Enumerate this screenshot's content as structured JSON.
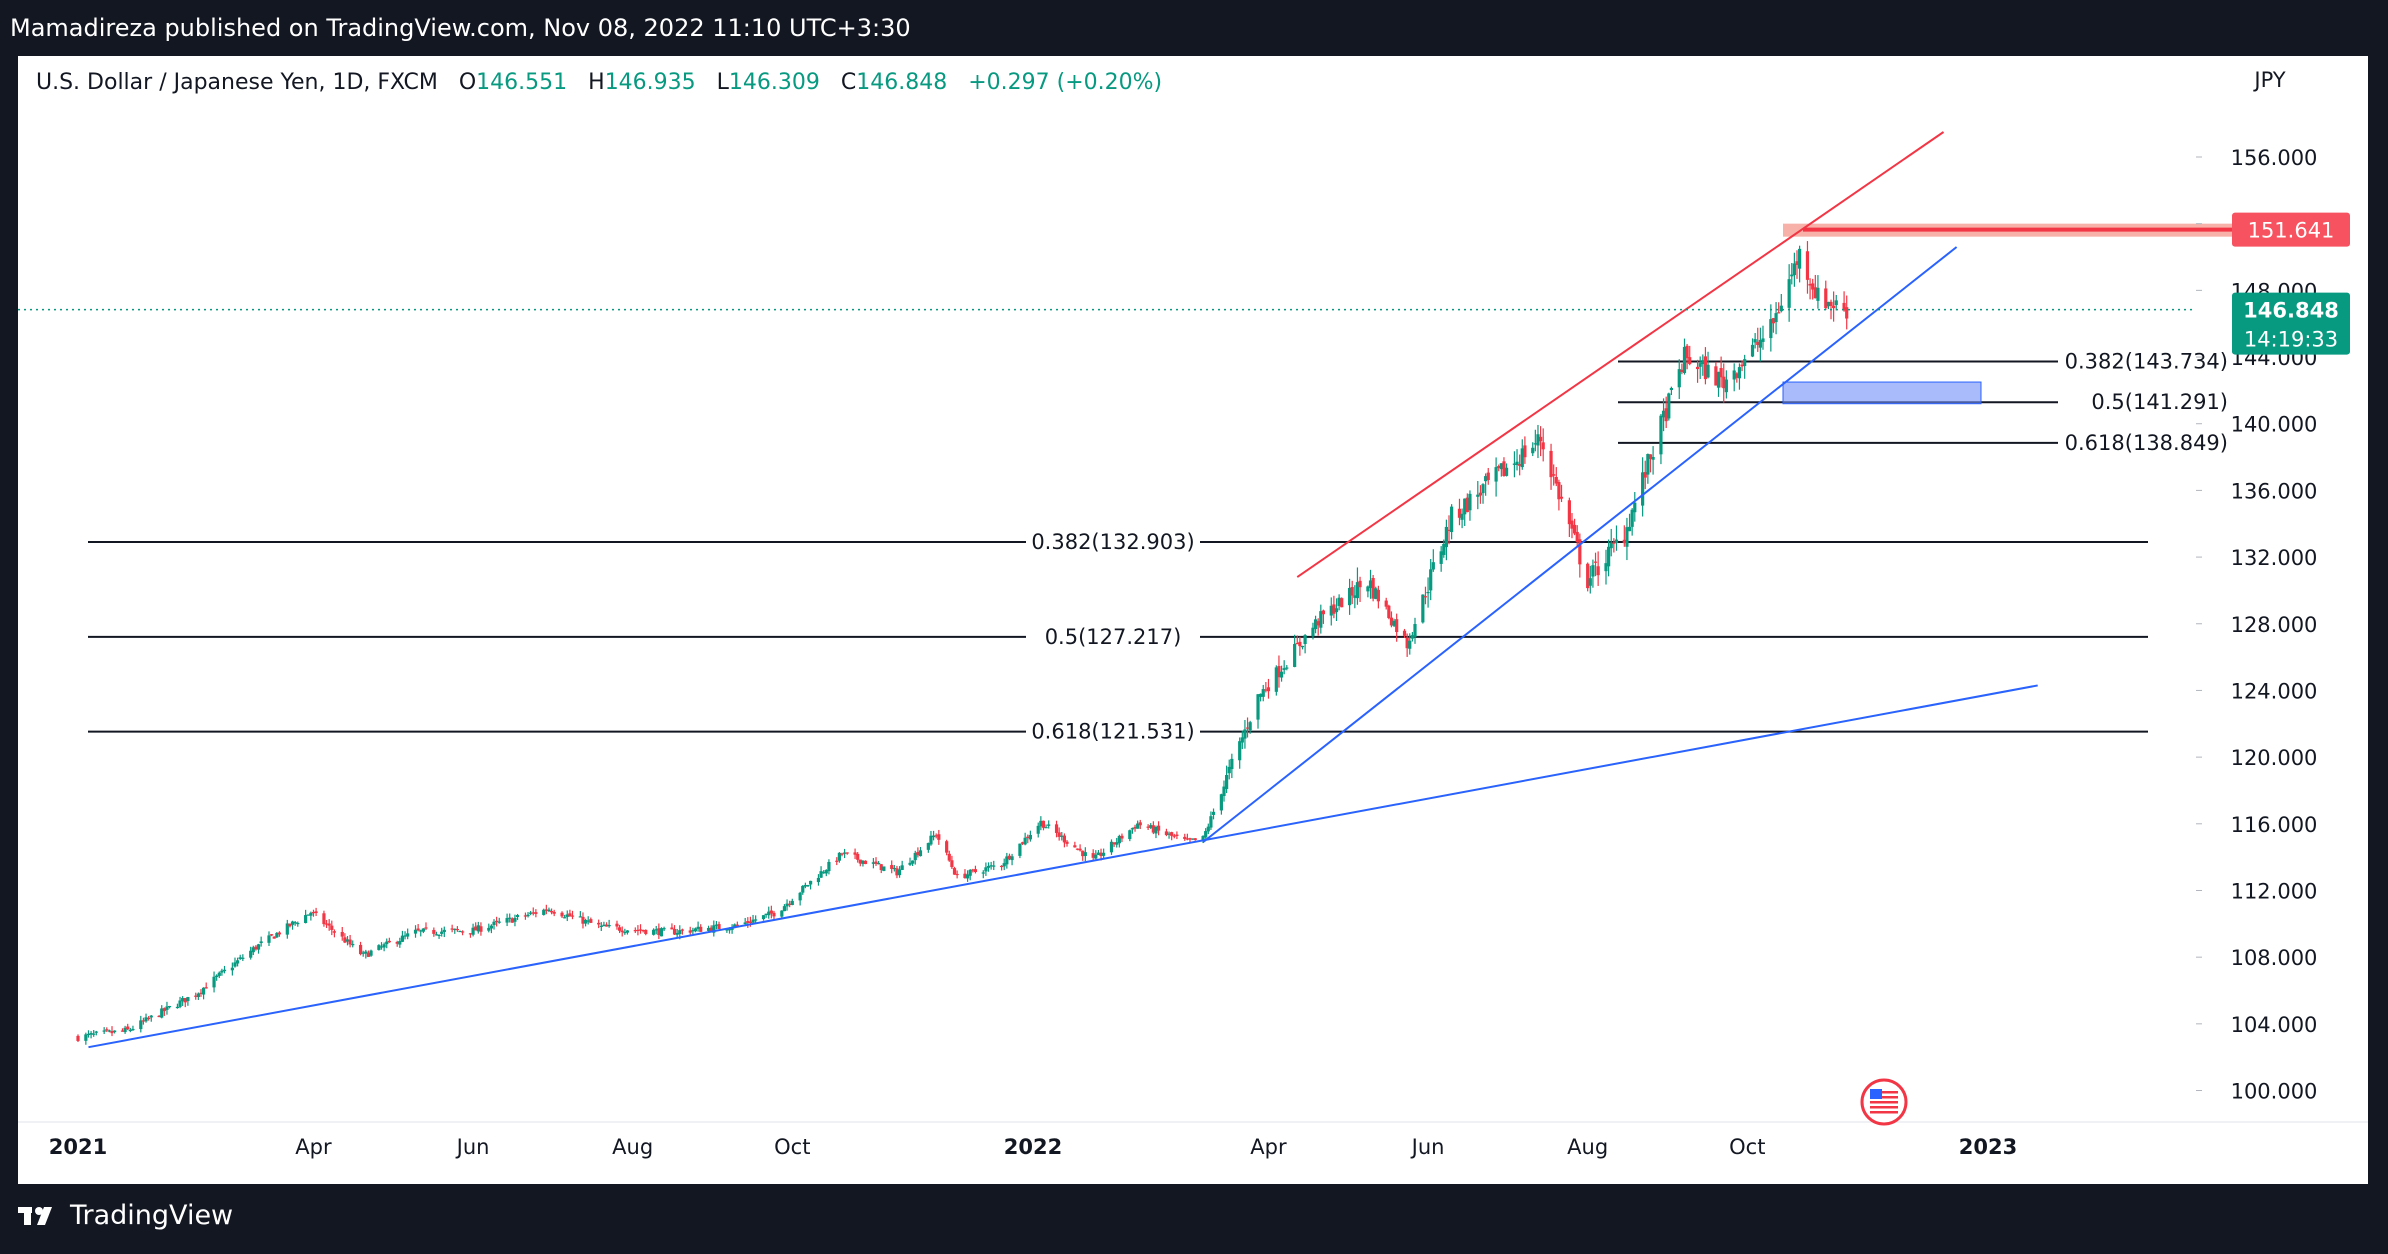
{
  "header": {
    "published": "Mamadireza published on TradingView.com, Nov 08, 2022 11:10 UTC+3:30"
  },
  "legend": {
    "symbol": "U.S. Dollar / Japanese Yen, 1D, FXCM",
    "o_label": "O",
    "o_value": "146.551",
    "h_label": "H",
    "h_value": "146.935",
    "l_label": "L",
    "l_value": "146.309",
    "c_label": "C",
    "c_value": "146.848",
    "change": "+0.297 (+0.20%)"
  },
  "currency": "JPY",
  "footer": {
    "brand": "TradingView"
  },
  "colors": {
    "up": "#089981",
    "down": "#f23645",
    "trend_blue": "#2962ff",
    "channel_red": "#f23645",
    "background": "#ffffff"
  },
  "chart_data": {
    "type": "candlestick",
    "symbol": "U.S. Dollar / Japanese Yen",
    "interval": "1D",
    "ylim": [
      98,
      160
    ],
    "y_ticks": [
      "156.000",
      "152.000",
      "148.000",
      "144.000",
      "140.000",
      "136.000",
      "132.000",
      "128.000",
      "124.000",
      "120.000",
      "116.000",
      "112.000",
      "108.000",
      "104.000",
      "100.000"
    ],
    "x_ticks": [
      {
        "label": "2021",
        "bold": true
      },
      {
        "label": "Apr",
        "bold": false
      },
      {
        "label": "Jun",
        "bold": false
      },
      {
        "label": "Aug",
        "bold": false
      },
      {
        "label": "Oct",
        "bold": false
      },
      {
        "label": "2022",
        "bold": true
      },
      {
        "label": "Apr",
        "bold": false
      },
      {
        "label": "Jun",
        "bold": false
      },
      {
        "label": "Aug",
        "bold": false
      },
      {
        "label": "Oct",
        "bold": false
      },
      {
        "label": "2023",
        "bold": true
      }
    ],
    "price_path": [
      [
        "2021-01-01",
        103.2
      ],
      [
        "2021-01-20",
        103.6
      ],
      [
        "2021-02-15",
        105.8
      ],
      [
        "2021-03-10",
        108.6
      ],
      [
        "2021-03-31",
        110.7
      ],
      [
        "2021-04-20",
        108.1
      ],
      [
        "2021-05-10",
        109.5
      ],
      [
        "2021-06-01",
        109.6
      ],
      [
        "2021-06-30",
        110.9
      ],
      [
        "2021-07-20",
        109.8
      ],
      [
        "2021-08-15",
        109.5
      ],
      [
        "2021-09-10",
        109.9
      ],
      [
        "2021-09-25",
        110.7
      ],
      [
        "2021-10-20",
        114.2
      ],
      [
        "2021-11-10",
        113.1
      ],
      [
        "2021-11-25",
        115.4
      ],
      [
        "2021-12-03",
        112.8
      ],
      [
        "2021-12-20",
        113.6
      ],
      [
        "2022-01-04",
        116.1
      ],
      [
        "2022-01-24",
        113.8
      ],
      [
        "2022-02-10",
        116.0
      ],
      [
        "2022-03-01",
        114.9
      ],
      [
        "2022-03-07",
        115.1
      ],
      [
        "2022-03-28",
        123.6
      ],
      [
        "2022-04-20",
        128.2
      ],
      [
        "2022-05-09",
        130.6
      ],
      [
        "2022-05-24",
        126.8
      ],
      [
        "2022-06-10",
        134.4
      ],
      [
        "2022-06-22",
        136.1
      ],
      [
        "2022-07-14",
        139.1
      ],
      [
        "2022-08-01",
        130.6
      ],
      [
        "2022-08-15",
        133.4
      ],
      [
        "2022-09-07",
        144.0
      ],
      [
        "2022-09-22",
        142.5
      ],
      [
        "2022-10-10",
        145.7
      ],
      [
        "2022-10-21",
        150.2
      ],
      [
        "2022-10-28",
        147.6
      ],
      [
        "2022-11-08",
        146.8
      ]
    ],
    "last_price": "146.848",
    "countdown": "14:19:33",
    "high_line": {
      "label": "151.641",
      "value": 151.641
    },
    "fib_large": [
      {
        "label": "0.382(132.903)",
        "value": 132.903
      },
      {
        "label": "0.5(127.217)",
        "value": 127.217
      },
      {
        "label": "0.618(121.531)",
        "value": 121.531
      }
    ],
    "fib_small": [
      {
        "label": "0.382(143.734)",
        "value": 143.734
      },
      {
        "label": "0.5(141.291)",
        "value": 141.291
      },
      {
        "label": "0.618(138.849)",
        "value": 138.849
      }
    ],
    "blue_zone": {
      "from": 141.2,
      "to": 142.5
    },
    "trendlines": [
      {
        "color": "blue",
        "from": [
          "2021-01-05",
          102.6
        ],
        "to": [
          "2023-01-20",
          124.3
        ]
      },
      {
        "color": "blue",
        "from": [
          "2022-03-07",
          114.9
        ],
        "to": [
          "2022-12-20",
          150.6
        ]
      },
      {
        "color": "red",
        "from": [
          "2022-04-12",
          130.8
        ],
        "to": [
          "2022-12-15",
          157.5
        ]
      }
    ]
  }
}
